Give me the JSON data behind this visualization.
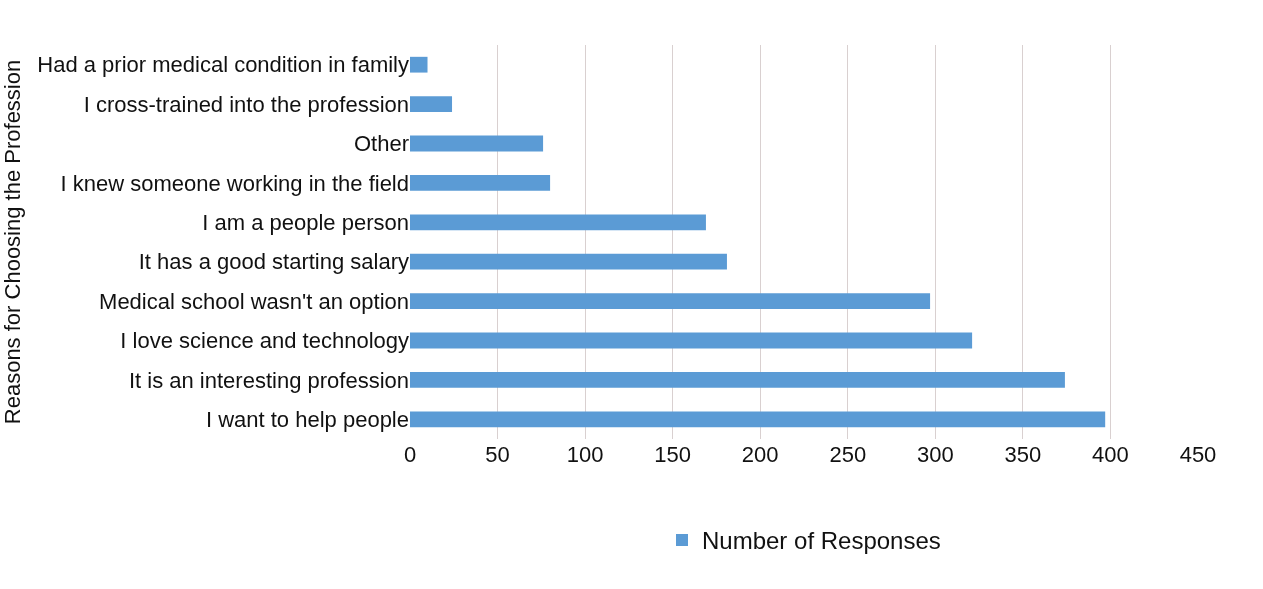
{
  "chart_data": {
    "type": "bar",
    "orientation": "horizontal",
    "ylabel": "Reasons for Choosing the Profession",
    "categories": [
      "Had a prior medical condition in family",
      "I cross-trained into the profession",
      "Other",
      "I knew someone working in the field",
      "I am a people person",
      "It has a good starting salary",
      "Medical school wasn't an option",
      "I love science and technology",
      "It is an interesting profession",
      "I want to help people"
    ],
    "series": [
      {
        "name": "Number of Responses",
        "color": "#5b9bd5",
        "values": [
          10,
          24,
          76,
          80,
          169,
          181,
          297,
          321,
          374,
          397
        ]
      }
    ],
    "xlim": [
      0,
      450
    ],
    "xticks": [
      0,
      50,
      100,
      150,
      200,
      250,
      300,
      350,
      400,
      450
    ],
    "grid": "x",
    "legend": "bottom"
  }
}
